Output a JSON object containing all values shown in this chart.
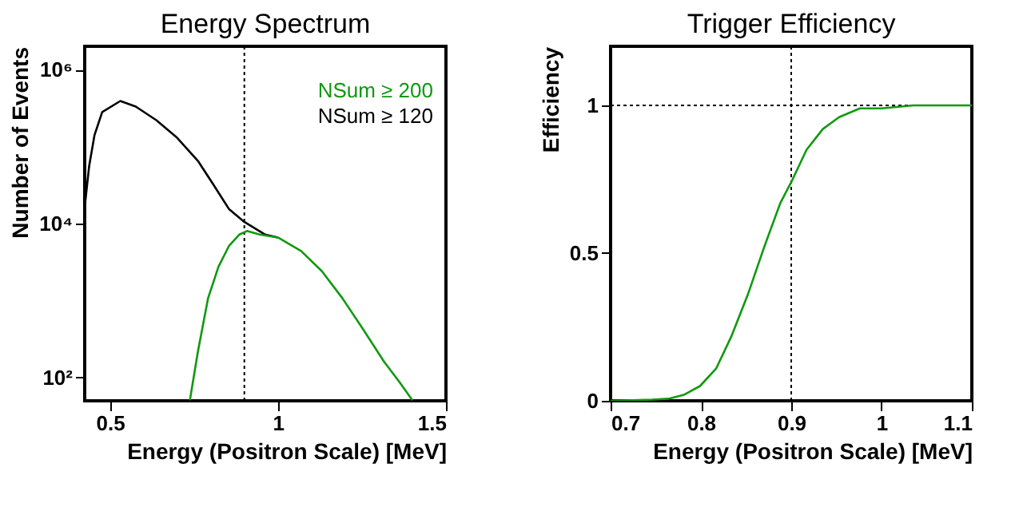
{
  "chart_data": [
    {
      "type": "line",
      "title": "Energy Spectrum",
      "xlabel": "Energy (Positron Scale) [MeV]",
      "ylabel": "Number of Events",
      "log": "y",
      "xlim": [
        0.425,
        1.5
      ],
      "xticks": [
        0.5,
        1,
        1.5
      ],
      "ylim": [
        50,
        2000000
      ],
      "yticks": [
        {
          "value": 100,
          "label": "10²"
        },
        {
          "value": 10000,
          "label": "10⁴"
        },
        {
          "value": 1000000,
          "label": "10⁶"
        }
      ],
      "grid": false,
      "legend": "top right",
      "ref_lines": [
        {
          "axis": "x",
          "value": 0.9,
          "line_style": "dotted",
          "color": "#000000"
        }
      ],
      "series": [
        {
          "name": "NSum ≥ 200",
          "color": "#109910",
          "x": [
            0.738,
            0.762,
            0.792,
            0.823,
            0.854,
            0.885,
            0.908,
            0.946,
            1.0,
            1.069,
            1.131,
            1.192,
            1.254,
            1.315,
            1.362,
            1.4
          ],
          "values": [
            51,
            220,
            1070,
            2750,
            5100,
            7200,
            8000,
            7200,
            6600,
            4400,
            2400,
            1070,
            420,
            163,
            87,
            51
          ]
        },
        {
          "name": "NSum ≥ 120",
          "color": "#000000",
          "x": [
            0.426,
            0.438,
            0.454,
            0.477,
            0.531,
            0.577,
            0.638,
            0.7,
            0.762,
            0.808,
            0.854,
            0.9,
            0.962,
            1.0
          ],
          "values": [
            18000,
            55000,
            140000,
            280000,
            390000,
            330000,
            220000,
            130000,
            65000,
            32000,
            15500,
            10500,
            7200,
            6600
          ]
        }
      ]
    },
    {
      "type": "line",
      "title": "Trigger Efficiency",
      "xlabel": "Energy (Positron Scale) [MeV]",
      "ylabel": "Efficiency",
      "xlim": [
        0.7,
        1.1
      ],
      "xticks": [
        0.7,
        0.8,
        0.9,
        1,
        1.1
      ],
      "ylim": [
        0,
        1.2
      ],
      "yticks": [
        0,
        0.5,
        1
      ],
      "grid": false,
      "ref_lines": [
        {
          "axis": "x",
          "value": 0.9,
          "line_style": "dotted",
          "color": "#000000"
        },
        {
          "axis": "y",
          "value": 1,
          "line_style": "dotted",
          "color": "#000000"
        }
      ],
      "series": [
        {
          "color": "#109910",
          "x": [
            0.7,
            0.746,
            0.764,
            0.781,
            0.799,
            0.817,
            0.834,
            0.852,
            0.87,
            0.888,
            0.9,
            0.917,
            0.935,
            0.953,
            0.976,
            1.0,
            1.035,
            1.1
          ],
          "values": [
            0,
            0.004,
            0.007,
            0.02,
            0.05,
            0.11,
            0.22,
            0.36,
            0.52,
            0.67,
            0.74,
            0.85,
            0.92,
            0.96,
            0.99,
            0.99,
            1,
            1
          ]
        }
      ]
    }
  ]
}
